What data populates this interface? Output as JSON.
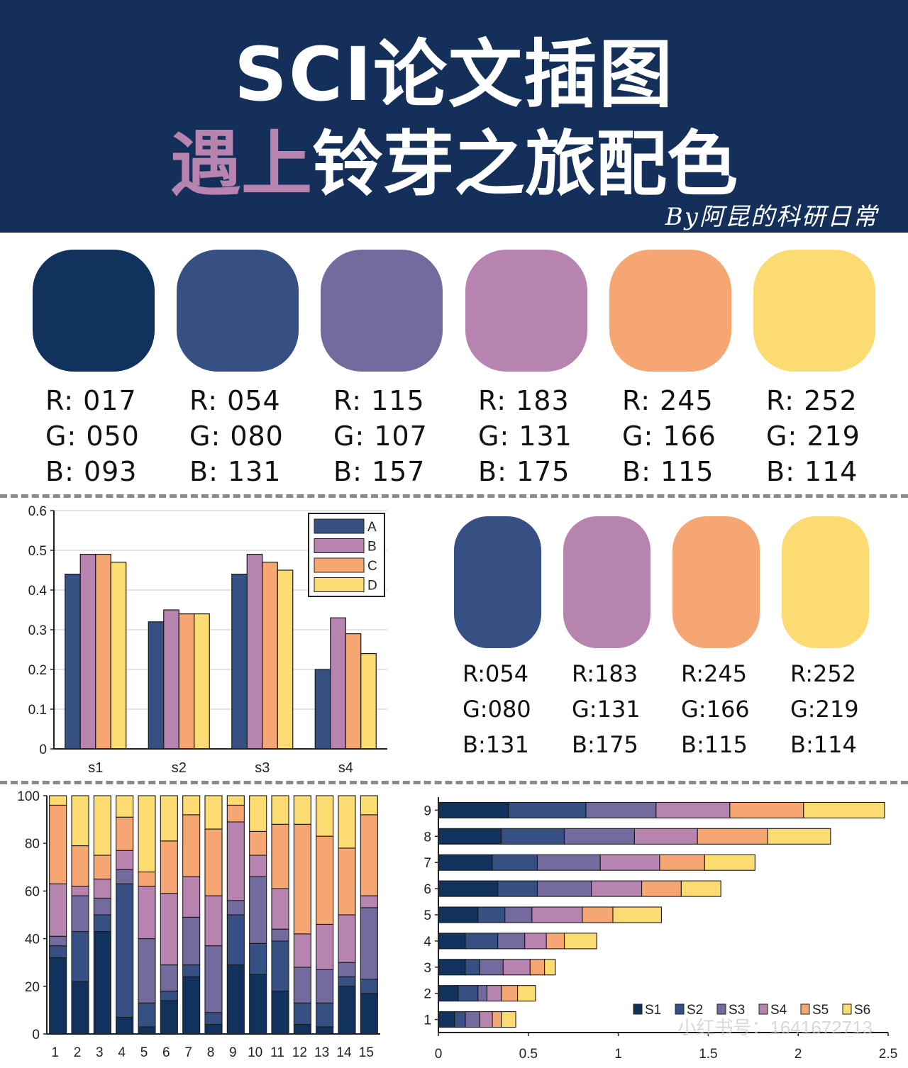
{
  "header": {
    "title_line1": "SCI论文插图",
    "title_line2_accent": "遇上",
    "title_line2_rest": "铃芽之旅配色",
    "byline": "By阿昆的科研日常"
  },
  "palette6": [
    {
      "hex": "#11325d",
      "r": "R: 017",
      "g": "G: 050",
      "b": "B: 093"
    },
    {
      "hex": "#365083",
      "r": "R: 054",
      "g": "G: 080",
      "b": "B: 131"
    },
    {
      "hex": "#736b9d",
      "r": "R: 115",
      "g": "G: 107",
      "b": "B: 157"
    },
    {
      "hex": "#b783af",
      "r": "R: 183",
      "g": "G: 131",
      "b": "B: 175"
    },
    {
      "hex": "#f5a673",
      "r": "R: 245",
      "g": "G: 166",
      "b": "B: 115"
    },
    {
      "hex": "#fcdb72",
      "r": "R: 252",
      "g": "G: 219",
      "b": "B: 114"
    }
  ],
  "palette4": [
    {
      "hex": "#365083",
      "r": "R:054",
      "g": "G:080",
      "b": "B:131"
    },
    {
      "hex": "#b783af",
      "r": "R:183",
      "g": "G:131",
      "b": "B:175"
    },
    {
      "hex": "#f5a673",
      "r": "R:245",
      "g": "G:166",
      "b": "B:115"
    },
    {
      "hex": "#fcdb72",
      "r": "R:252",
      "g": "G:219",
      "b": "B:114"
    }
  ],
  "watermark": "小红书号：1641672713",
  "chart_data": [
    {
      "type": "bar",
      "title": "",
      "categories": [
        "s1",
        "s2",
        "s3",
        "s4"
      ],
      "series": [
        {
          "name": "A",
          "color": "#365083",
          "values": [
            0.44,
            0.32,
            0.44,
            0.2
          ]
        },
        {
          "name": "B",
          "color": "#b783af",
          "values": [
            0.49,
            0.35,
            0.49,
            0.33
          ]
        },
        {
          "name": "C",
          "color": "#f5a673",
          "values": [
            0.49,
            0.34,
            0.47,
            0.29
          ]
        },
        {
          "name": "D",
          "color": "#fcdb72",
          "values": [
            0.47,
            0.34,
            0.45,
            0.24
          ]
        }
      ],
      "yticks": [
        "0",
        "0.1",
        "0.2",
        "0.3",
        "0.4",
        "0.5",
        "0.6"
      ],
      "ylim": [
        0,
        0.6
      ],
      "grid": true,
      "legend": "top-right"
    },
    {
      "type": "bar",
      "stacked": true,
      "title": "",
      "categories": [
        "1",
        "2",
        "3",
        "4",
        "5",
        "6",
        "7",
        "8",
        "9",
        "10",
        "11",
        "12",
        "13",
        "14",
        "15"
      ],
      "series": [
        {
          "color": "#11325d",
          "values": [
            32,
            22,
            43,
            7,
            3,
            14,
            24,
            4,
            29,
            25,
            18,
            4,
            3,
            20,
            17
          ]
        },
        {
          "color": "#365083",
          "values": [
            5,
            21,
            7,
            56,
            10,
            4,
            5,
            5,
            21,
            13,
            21,
            9,
            10,
            4,
            6
          ]
        },
        {
          "color": "#736b9d",
          "values": [
            4,
            15,
            7,
            6,
            27,
            11,
            20,
            28,
            6,
            28,
            5,
            15,
            14,
            6,
            30
          ]
        },
        {
          "color": "#b783af",
          "values": [
            22,
            4,
            8,
            8,
            22,
            30,
            17,
            21,
            33,
            9,
            17,
            14,
            19,
            20,
            5
          ]
        },
        {
          "color": "#f5a673",
          "values": [
            33,
            17,
            10,
            14,
            6,
            22,
            26,
            28,
            7,
            10,
            27,
            46,
            37,
            28,
            34
          ]
        },
        {
          "color": "#fcdb72",
          "values": [
            4,
            21,
            25,
            9,
            32,
            19,
            8,
            14,
            4,
            15,
            12,
            12,
            17,
            22,
            8
          ]
        }
      ],
      "yticks": [
        "0",
        "20",
        "40",
        "60",
        "80",
        "100"
      ],
      "ylim": [
        0,
        100
      ]
    },
    {
      "type": "bar",
      "orientation": "horizontal",
      "stacked": true,
      "title": "",
      "categories": [
        "1",
        "2",
        "3",
        "4",
        "5",
        "6",
        "7",
        "8",
        "9"
      ],
      "series": [
        {
          "name": "S1",
          "color": "#11325d",
          "values": [
            0.09,
            0.11,
            0.15,
            0.15,
            0.22,
            0.33,
            0.3,
            0.35,
            0.39
          ]
        },
        {
          "name": "S2",
          "color": "#365083",
          "values": [
            0.06,
            0.11,
            0.08,
            0.18,
            0.15,
            0.22,
            0.25,
            0.35,
            0.43
          ]
        },
        {
          "name": "S3",
          "color": "#736b9d",
          "values": [
            0.08,
            0.05,
            0.13,
            0.15,
            0.15,
            0.3,
            0.35,
            0.39,
            0.39
          ]
        },
        {
          "name": "S4",
          "color": "#b783af",
          "values": [
            0.07,
            0.08,
            0.15,
            0.12,
            0.28,
            0.28,
            0.33,
            0.35,
            0.41
          ]
        },
        {
          "name": "S5",
          "color": "#f5a673",
          "values": [
            0.05,
            0.09,
            0.08,
            0.1,
            0.17,
            0.22,
            0.25,
            0.39,
            0.41
          ]
        },
        {
          "name": "S6",
          "color": "#fcdb72",
          "values": [
            0.08,
            0.1,
            0.06,
            0.18,
            0.27,
            0.22,
            0.28,
            0.35,
            0.45
          ]
        }
      ],
      "xticks": [
        "0",
        "0.5",
        "1",
        "1.5",
        "2",
        "2.5"
      ],
      "xlim": [
        0,
        2.5
      ],
      "legend": "bottom-right"
    }
  ]
}
